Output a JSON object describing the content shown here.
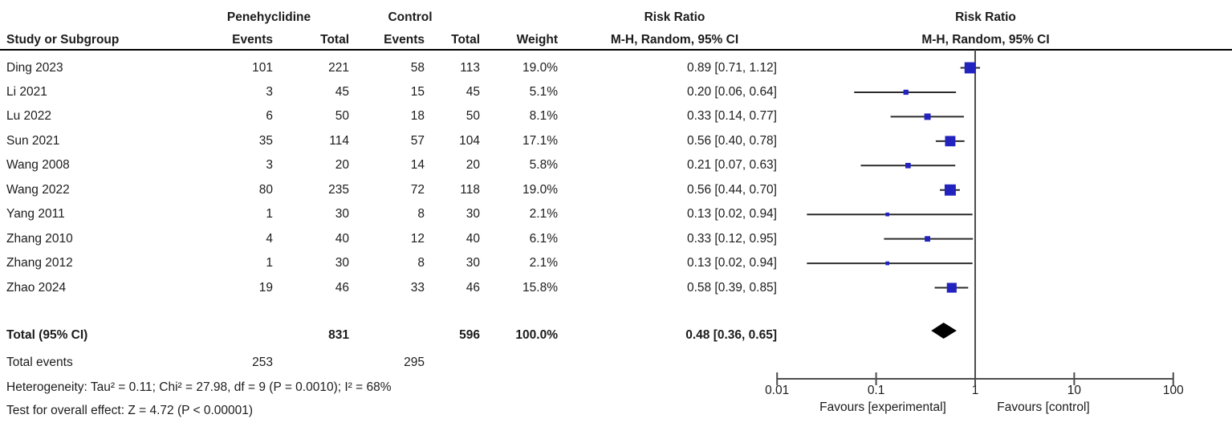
{
  "figure": {
    "background": "#ffffff",
    "text_color": "#1c1c1c",
    "marker_color": "#2222bf",
    "diamond_color": "#000000",
    "axis_color": "#4d4d4d",
    "ci_color": "#2b2b2b"
  },
  "header": {
    "study_col": "Study or Subgroup",
    "group_experimental": "Penehyclidine",
    "group_control": "Control",
    "events_col_experimental": "Events",
    "total_col_experimental": "Total",
    "events_col_control": "Events",
    "total_col_control": "Total",
    "weight_col": "Weight",
    "rr_col_title": "Risk Ratio",
    "rr_col_subtitle": "M-H, Random, 95% CI",
    "plot_col_title": "Risk Ratio",
    "plot_col_subtitle": "M-H, Random, 95% CI"
  },
  "chart_data": {
    "type": "forest",
    "effect_measure": "Risk Ratio",
    "model": "M-H, Random, 95% CI",
    "x_scale": "log10",
    "x_ticks": [
      {
        "label": "0.01",
        "value": 0.01
      },
      {
        "label": "0.1",
        "value": 0.1
      },
      {
        "label": "1",
        "value": 1
      },
      {
        "label": "10",
        "value": 10
      },
      {
        "label": "100",
        "value": 100
      }
    ],
    "favours_left": "Favours [experimental]",
    "favours_right": "Favours [control]",
    "studies": [
      {
        "name": "Ding 2023",
        "exp_events": "101",
        "exp_total": "221",
        "ctl_events": "58",
        "ctl_total": "113",
        "weight": "19.0%",
        "weight_value": 19.0,
        "rr_text": "0.89 [0.71, 1.12]",
        "rr": 0.89,
        "ci_low": 0.71,
        "ci_high": 1.12
      },
      {
        "name": "Li 2021",
        "exp_events": "3",
        "exp_total": "45",
        "ctl_events": "15",
        "ctl_total": "45",
        "weight": "5.1%",
        "weight_value": 5.1,
        "rr_text": "0.20 [0.06, 0.64]",
        "rr": 0.2,
        "ci_low": 0.06,
        "ci_high": 0.64
      },
      {
        "name": "Lu 2022",
        "exp_events": "6",
        "exp_total": "50",
        "ctl_events": "18",
        "ctl_total": "50",
        "weight": "8.1%",
        "weight_value": 8.1,
        "rr_text": "0.33 [0.14, 0.77]",
        "rr": 0.33,
        "ci_low": 0.14,
        "ci_high": 0.77
      },
      {
        "name": "Sun 2021",
        "exp_events": "35",
        "exp_total": "114",
        "ctl_events": "57",
        "ctl_total": "104",
        "weight": "17.1%",
        "weight_value": 17.1,
        "rr_text": "0.56 [0.40, 0.78]",
        "rr": 0.56,
        "ci_low": 0.4,
        "ci_high": 0.78
      },
      {
        "name": "Wang 2008",
        "exp_events": "3",
        "exp_total": "20",
        "ctl_events": "14",
        "ctl_total": "20",
        "weight": "5.8%",
        "weight_value": 5.8,
        "rr_text": "0.21 [0.07, 0.63]",
        "rr": 0.21,
        "ci_low": 0.07,
        "ci_high": 0.63
      },
      {
        "name": "Wang 2022",
        "exp_events": "80",
        "exp_total": "235",
        "ctl_events": "72",
        "ctl_total": "118",
        "weight": "19.0%",
        "weight_value": 19.0,
        "rr_text": "0.56 [0.44, 0.70]",
        "rr": 0.56,
        "ci_low": 0.44,
        "ci_high": 0.7
      },
      {
        "name": "Yang 2011",
        "exp_events": "1",
        "exp_total": "30",
        "ctl_events": "8",
        "ctl_total": "30",
        "weight": "2.1%",
        "weight_value": 2.1,
        "rr_text": "0.13 [0.02, 0.94]",
        "rr": 0.13,
        "ci_low": 0.02,
        "ci_high": 0.94
      },
      {
        "name": "Zhang 2010",
        "exp_events": "4",
        "exp_total": "40",
        "ctl_events": "12",
        "ctl_total": "40",
        "weight": "6.1%",
        "weight_value": 6.1,
        "rr_text": "0.33 [0.12, 0.95]",
        "rr": 0.33,
        "ci_low": 0.12,
        "ci_high": 0.95
      },
      {
        "name": "Zhang 2012",
        "exp_events": "1",
        "exp_total": "30",
        "ctl_events": "8",
        "ctl_total": "30",
        "weight": "2.1%",
        "weight_value": 2.1,
        "rr_text": "0.13 [0.02, 0.94]",
        "rr": 0.13,
        "ci_low": 0.02,
        "ci_high": 0.94
      },
      {
        "name": "Zhao 2024",
        "exp_events": "19",
        "exp_total": "46",
        "ctl_events": "33",
        "ctl_total": "46",
        "weight": "15.8%",
        "weight_value": 15.8,
        "rr_text": "0.58 [0.39, 0.85]",
        "rr": 0.58,
        "ci_low": 0.39,
        "ci_high": 0.85
      }
    ],
    "total": {
      "label": "Total (95% CI)",
      "exp_total": "831",
      "ctl_total": "596",
      "weight": "100.0%",
      "rr_text": "0.48 [0.36, 0.65]",
      "rr": 0.48,
      "ci_low": 0.36,
      "ci_high": 0.65
    },
    "total_events": {
      "label": "Total events",
      "exp_events": "253",
      "ctl_events": "295"
    },
    "heterogeneity": "Heterogeneity: Tau² = 0.11; Chi² = 27.98, df = 9 (P = 0.0010); I² = 68%",
    "overall_effect": "Test for overall effect: Z = 4.72 (P < 0.00001)"
  }
}
